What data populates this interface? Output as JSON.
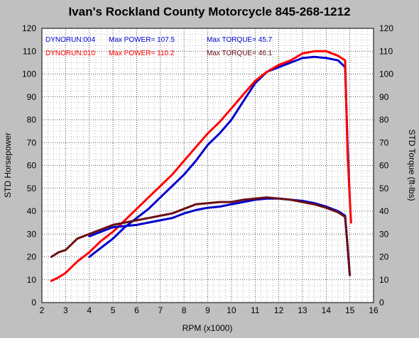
{
  "chart_data": {
    "type": "line",
    "title": "Ivan's Rockland County Motorcycle  845-268-1212",
    "xlabel": "RPM (x1000)",
    "ylabel_left": "STD Horsepower",
    "ylabel_right": "STD Torque (ft-lbs)",
    "xlim": [
      2,
      16
    ],
    "ylim": [
      0,
      120
    ],
    "x_ticks": [
      2,
      3,
      4,
      5,
      6,
      7,
      8,
      9,
      10,
      11,
      12,
      13,
      14,
      15,
      16
    ],
    "y_ticks": [
      0,
      10,
      20,
      30,
      40,
      50,
      60,
      70,
      80,
      90,
      100,
      110,
      120
    ],
    "grid": true,
    "legend_position": "top-left",
    "legend": [
      {
        "run": "DYNORUN:004",
        "power_label": "Max POWER= 107.5",
        "torque_label": "Max TORQUE= 45.7",
        "color": "#0000cc"
      },
      {
        "run": "DYNORUN:010",
        "power_label": "Max POWER= 110.2",
        "torque_label": "Max TORQUE= 46.1",
        "color": "#ff0000"
      }
    ],
    "series": [
      {
        "run": "DYNORUN:004",
        "measure": "power",
        "color": "#0000cc",
        "x": [
          4.0,
          4.5,
          5.0,
          5.5,
          6.0,
          6.5,
          7.0,
          7.5,
          8.0,
          8.5,
          9.0,
          9.5,
          10.0,
          10.5,
          11.0,
          11.5,
          12.0,
          12.5,
          13.0,
          13.5,
          14.0,
          14.5,
          14.8,
          14.9,
          15.0
        ],
        "y": [
          20,
          24,
          28,
          33,
          37,
          41,
          46,
          51,
          56,
          62,
          69,
          74,
          80,
          88,
          96,
          101,
          103,
          105,
          107,
          107.5,
          107,
          106,
          103,
          70,
          45
        ]
      },
      {
        "run": "DYNORUN:010",
        "measure": "power",
        "color": "#ff0000",
        "x": [
          2.4,
          2.7,
          3.0,
          3.5,
          4.0,
          4.5,
          5.0,
          5.5,
          6.0,
          6.5,
          7.0,
          7.5,
          8.0,
          8.5,
          9.0,
          9.5,
          10.0,
          10.5,
          11.0,
          11.5,
          12.0,
          12.5,
          13.0,
          13.5,
          14.0,
          14.5,
          14.8,
          14.9,
          15.0,
          15.05
        ],
        "y": [
          9.5,
          11,
          13,
          18,
          22,
          27,
          31,
          36,
          41,
          46,
          51,
          56,
          62,
          68,
          74,
          79,
          85,
          91,
          97,
          101,
          104,
          106,
          109,
          110,
          110,
          108,
          106,
          66,
          45,
          35
        ]
      },
      {
        "run": "DYNORUN:004",
        "measure": "torque",
        "color": "#0000cc",
        "x": [
          4.0,
          4.5,
          5.0,
          5.5,
          6.0,
          6.5,
          7.0,
          7.5,
          8.0,
          8.5,
          9.0,
          9.5,
          10.0,
          10.5,
          11.0,
          11.5,
          12.0,
          12.5,
          13.0,
          13.5,
          14.0,
          14.5,
          14.8,
          14.9,
          15.0
        ],
        "y": [
          29,
          31,
          33,
          33.5,
          34,
          35,
          36,
          37,
          39,
          40.5,
          41.5,
          42,
          43,
          44,
          45,
          45.5,
          45.5,
          45,
          44.5,
          43.5,
          42,
          40,
          38,
          25,
          12
        ]
      },
      {
        "run": "DYNORUN:010",
        "measure": "torque",
        "color": "#6a0f14",
        "x": [
          2.4,
          2.7,
          3.0,
          3.5,
          4.0,
          4.5,
          5.0,
          5.5,
          6.0,
          6.5,
          7.0,
          7.5,
          8.0,
          8.5,
          9.0,
          9.5,
          10.0,
          10.5,
          11.0,
          11.5,
          12.0,
          12.5,
          13.0,
          13.5,
          14.0,
          14.5,
          14.8,
          14.9,
          15.0
        ],
        "y": [
          20,
          22,
          23,
          28,
          30,
          32,
          34,
          35,
          36,
          37,
          38,
          39,
          41,
          43,
          43.5,
          44,
          44,
          45,
          45.5,
          46,
          45.5,
          45,
          44,
          43,
          41.5,
          39.5,
          37.5,
          25,
          12
        ]
      }
    ]
  }
}
